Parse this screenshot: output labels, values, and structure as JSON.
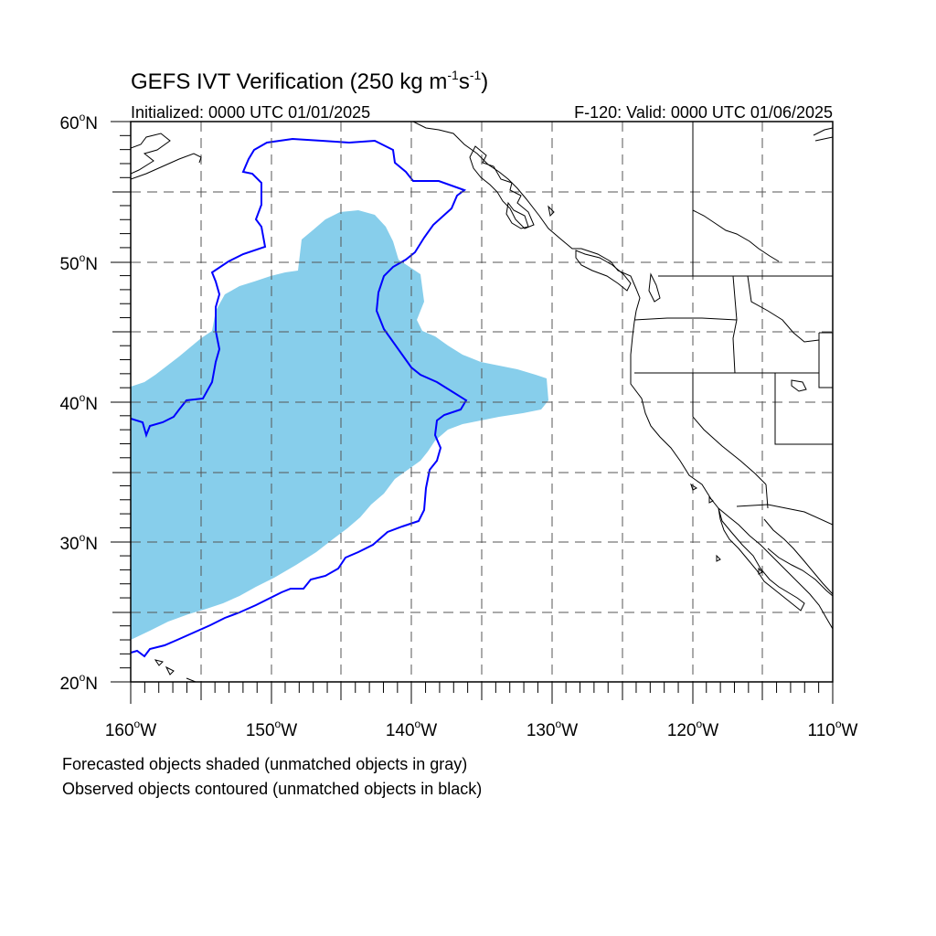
{
  "title_main": "GEFS IVT Verification (250 kg m",
  "title_exp1": "-1",
  "title_mid": "s",
  "title_exp2": "-1",
  "title_close": ")",
  "initialized": "Initialized: 0000 UTC 01/01/2025",
  "valid": "F-120: Valid: 0000 UTC 01/06/2025",
  "footnotes": [
    "Forecasted objects shaded (unmatched objects in gray)",
    "Observed objects contoured (unmatched objects in black)"
  ],
  "map_extent": {
    "lon": [
      -160,
      -110
    ],
    "lat": [
      20,
      60
    ]
  },
  "lon_labels": [
    {
      "deg": "160",
      "suffix": "W"
    },
    {
      "deg": "150",
      "suffix": "W"
    },
    {
      "deg": "140",
      "suffix": "W"
    },
    {
      "deg": "130",
      "suffix": "W"
    },
    {
      "deg": "120",
      "suffix": "W"
    },
    {
      "deg": "110",
      "suffix": "W"
    }
  ],
  "lat_labels": [
    {
      "deg": "60",
      "suffix": "N"
    },
    {
      "deg": "50",
      "suffix": "N"
    },
    {
      "deg": "40",
      "suffix": "N"
    },
    {
      "deg": "30",
      "suffix": "N"
    },
    {
      "deg": "20",
      "suffix": "N"
    }
  ],
  "colors": {
    "forecast_fill": "#87ceeb",
    "observed_contour": "#0000ff",
    "coastline": "#000000",
    "grid": "#555555"
  }
}
